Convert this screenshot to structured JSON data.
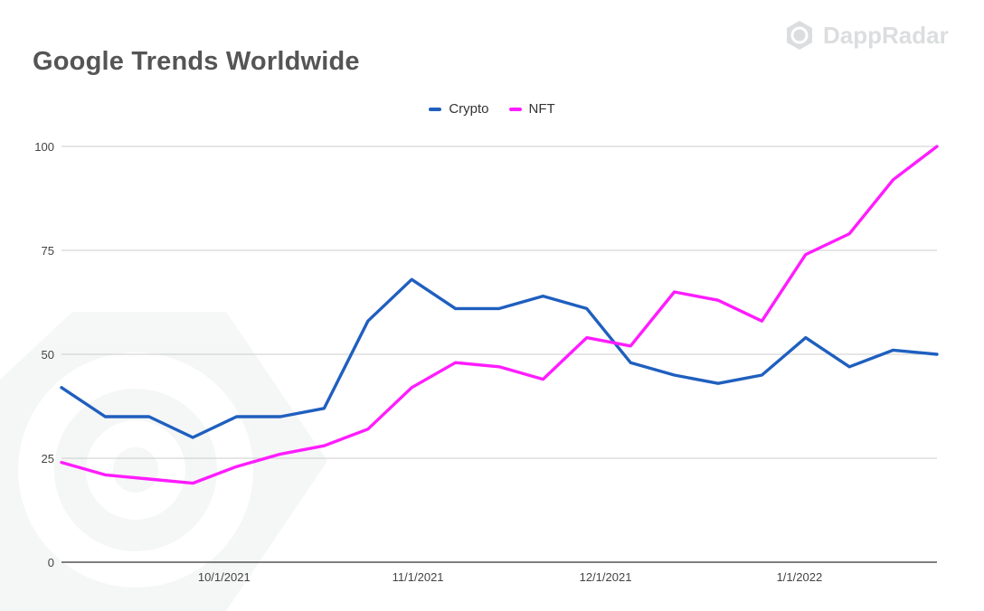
{
  "brand": {
    "name": "DappRadar",
    "icon": "dappradar-logo-icon"
  },
  "chart_data": {
    "type": "line",
    "title": "Google Trends Worldwide",
    "xlabel": "",
    "ylabel": "",
    "x": [
      "2021-09-05",
      "2021-09-12",
      "2021-09-19",
      "2021-09-26",
      "2021-10-03",
      "2021-10-10",
      "2021-10-17",
      "2021-10-24",
      "2021-10-31",
      "2021-11-07",
      "2021-11-14",
      "2021-11-21",
      "2021-11-28",
      "2021-12-05",
      "2021-12-12",
      "2021-12-19",
      "2021-12-26",
      "2022-01-02",
      "2022-01-09",
      "2022-01-16",
      "2022-01-23"
    ],
    "x_ticks": [
      {
        "date": "2021-10-01",
        "label": "10/1/2021"
      },
      {
        "date": "2021-11-01",
        "label": "11/1/2021"
      },
      {
        "date": "2021-12-01",
        "label": "12/1/2021"
      },
      {
        "date": "2022-01-01",
        "label": "1/1/2022"
      }
    ],
    "ylim": [
      0,
      100
    ],
    "y_ticks": [
      0,
      25,
      50,
      75,
      100
    ],
    "grid": true,
    "legend_position": "top-center",
    "series": [
      {
        "name": "Crypto",
        "color": "#1f5fbf",
        "values": [
          42,
          35,
          35,
          30,
          35,
          35,
          37,
          58,
          68,
          61,
          61,
          64,
          61,
          48,
          45,
          43,
          45,
          54,
          47,
          51,
          50
        ]
      },
      {
        "name": "NFT",
        "color": "#ff1cff",
        "values": [
          24,
          21,
          20,
          19,
          23,
          26,
          28,
          32,
          42,
          48,
          47,
          44,
          54,
          52,
          65,
          63,
          58,
          74,
          79,
          92,
          100
        ]
      }
    ]
  }
}
